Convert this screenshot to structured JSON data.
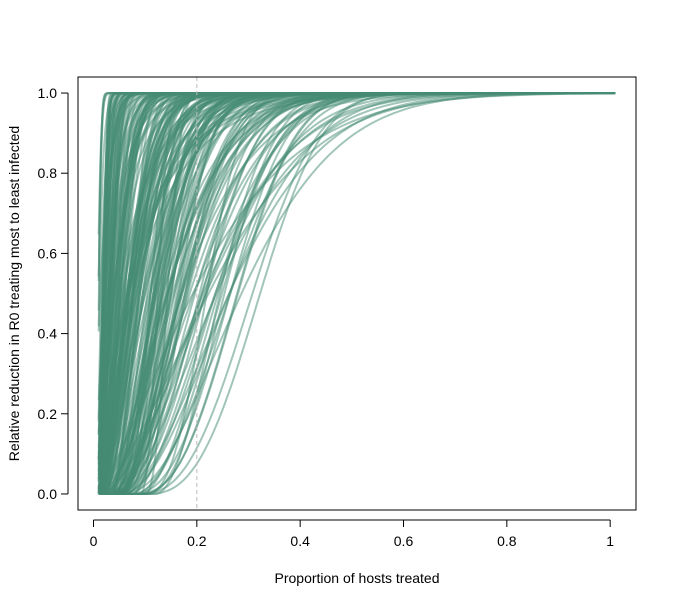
{
  "chart_data": {
    "type": "line",
    "title": "",
    "xlabel": "Proportion of hosts treated",
    "ylabel": "Relative reduction in R0 treating most to least infected",
    "xlim": [
      -0.03,
      1.05
    ],
    "ylim": [
      -0.04,
      1.04
    ],
    "x_ticks": [
      0,
      0.2,
      0.4,
      0.6,
      0.8,
      1
    ],
    "x_tick_labels": [
      "0",
      "0.2",
      "0.4",
      "0.6",
      "0.8",
      "1"
    ],
    "y_ticks": [
      0,
      0.2,
      0.4,
      0.6,
      0.8,
      1
    ],
    "y_tick_labels": [
      "0.0",
      "0.2",
      "0.4",
      "0.6",
      "0.8",
      "1.0"
    ],
    "reference_line": {
      "x": 0.2,
      "style": "dashed",
      "color": "#bbbbbb"
    },
    "line_color": "#458b74",
    "line_opacity": 0.5,
    "x_range_of_curves": [
      0.01,
      1.01
    ],
    "series_count": 220,
    "grid": false,
    "legend": "none",
    "series_shape": {
      "family": "saturating curve, y = 1 - exp(-((x - x0)/s)^k) for x > x0, 0 otherwise",
      "curves": [
        {
          "x0": 0.0,
          "s": 0.03,
          "k": 1.2
        },
        {
          "x0": 0.06,
          "s": 0.06,
          "k": 2.2
        },
        {
          "x0": 0.09,
          "s": 0.04,
          "k": 2.5
        },
        {
          "x0": 0.1,
          "s": 0.05,
          "k": 2.5
        },
        {
          "x0": 0.0,
          "s": 0.25,
          "k": 1.4
        },
        {
          "x0": 0.05,
          "s": 0.22,
          "k": 2.2
        },
        {
          "x0": 0.08,
          "s": 0.23,
          "k": 2.6
        },
        {
          "x0": 0.1,
          "s": 0.18,
          "k": 2.3
        },
        {
          "x0": 0.12,
          "s": 0.15,
          "k": 2.0
        },
        {
          "x0": 0.0,
          "s": 0.28,
          "k": 1.6
        }
      ]
    }
  }
}
